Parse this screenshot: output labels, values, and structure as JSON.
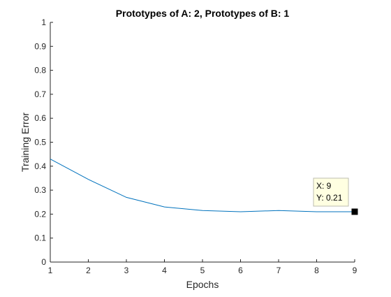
{
  "chart_data": {
    "type": "line",
    "title": "Prototypes of A: 2, Prototypes of B: 1",
    "xlabel": "Epochs",
    "ylabel": "Training Error",
    "xlim": [
      1,
      9
    ],
    "ylim": [
      0,
      1
    ],
    "xticks": [
      "1",
      "2",
      "3",
      "4",
      "5",
      "6",
      "7",
      "8",
      "9"
    ],
    "yticks": [
      "0",
      "0.1",
      "0.2",
      "0.3",
      "0.4",
      "0.5",
      "0.6",
      "0.7",
      "0.8",
      "0.9",
      "1"
    ],
    "grid": false,
    "series": [
      {
        "color": "#0072bd",
        "x": [
          1,
          2,
          3,
          4,
          5,
          6,
          7,
          8,
          9
        ],
        "y": [
          0.43,
          0.345,
          0.27,
          0.23,
          0.215,
          0.21,
          0.215,
          0.21,
          0.21
        ]
      }
    ],
    "datatip": {
      "x": 9,
      "y": 0.21,
      "x_text": "X: 9",
      "y_text": "Y: 0.21"
    }
  }
}
